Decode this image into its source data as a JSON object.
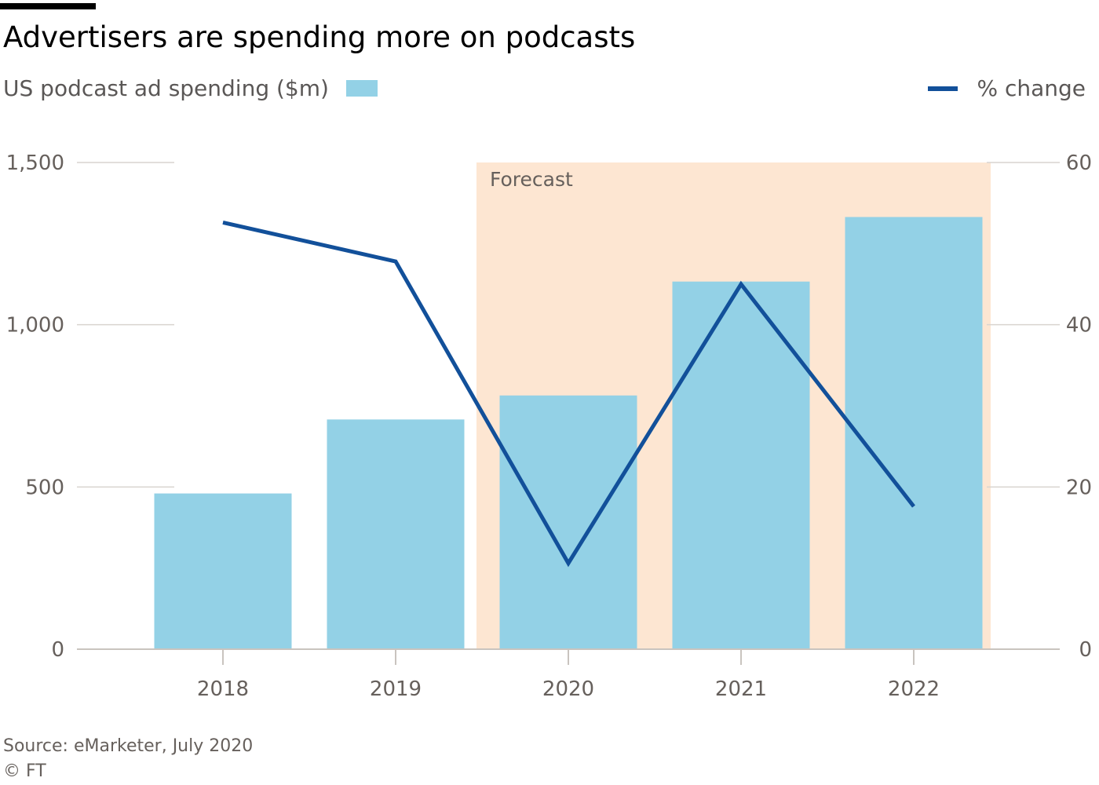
{
  "chart_data": {
    "type": "bar",
    "title": "Advertisers are spending more on podcasts",
    "categories": [
      "2018",
      "2019",
      "2020",
      "2021",
      "2022"
    ],
    "series": [
      {
        "name": "US podcast ad spending ($m)",
        "kind": "bar",
        "axis": "left",
        "values": [
          480,
          708,
          782,
          1133,
          1332
        ],
        "color": "#93d1e6"
      },
      {
        "name": "% change",
        "kind": "line",
        "axis": "right",
        "values": [
          52.6,
          47.8,
          10.6,
          45.0,
          17.6
        ],
        "color": "#12509a"
      }
    ],
    "y_left": {
      "lim": [
        0,
        1500
      ],
      "ticks": [
        0,
        500,
        1000,
        1500
      ],
      "tick_labels": [
        "0",
        "500",
        "1,000",
        "1,500"
      ]
    },
    "y_right": {
      "lim": [
        0,
        60
      ],
      "ticks": [
        0,
        20,
        40,
        60
      ],
      "tick_labels": [
        "0",
        "20",
        "40",
        "60"
      ]
    },
    "forecast": {
      "label": "Forecast",
      "from": "2020",
      "to": "2022",
      "color": "#fde6d2"
    },
    "legend": {
      "bar_label": "US podcast ad spending ($m)",
      "line_label": "% change"
    },
    "source": "Source: eMarketer, July 2020",
    "credit": "© FT"
  }
}
